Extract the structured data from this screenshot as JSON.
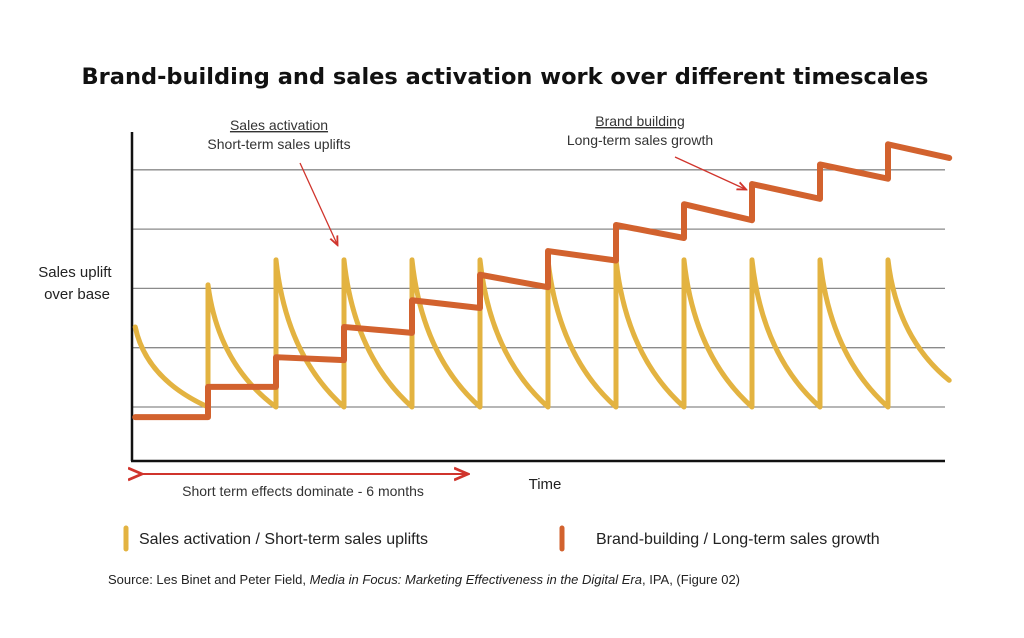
{
  "chart_data": {
    "type": "line",
    "title": "Brand-building and sales activation work over different timescales",
    "xlabel": "Time",
    "ylabel": "Sales uplift over base",
    "grid": true,
    "gridlines": [
      0,
      1,
      2,
      3,
      4
    ],
    "xlim": [
      -0.12,
      11.95
    ],
    "ylim": [
      -0.9,
      4.6
    ],
    "series": [
      {
        "name": "Sales activation / Short-term sales uplifts",
        "color": "#E3B341",
        "points": [
          [
            -0.07,
            1.35
          ],
          [
            1,
            0
          ],
          [
            1,
            2.06
          ],
          [
            2,
            0
          ],
          [
            2,
            2.48
          ],
          [
            3,
            0
          ],
          [
            3,
            2.48
          ],
          [
            4,
            0
          ],
          [
            4,
            2.48
          ],
          [
            5,
            0
          ],
          [
            5,
            2.48
          ],
          [
            6,
            0
          ],
          [
            6,
            2.48
          ],
          [
            7,
            0
          ],
          [
            7,
            2.48
          ],
          [
            8,
            0
          ],
          [
            8,
            2.48
          ],
          [
            9,
            0
          ],
          [
            9,
            2.48
          ],
          [
            10,
            0
          ],
          [
            10,
            2.48
          ],
          [
            11,
            0
          ],
          [
            11,
            2.48
          ],
          [
            11.9,
            0.45
          ]
        ]
      },
      {
        "name": "Brand-building / Long-term sales growth",
        "color": "#D2622E",
        "points": [
          [
            -0.07,
            -0.17
          ],
          [
            1,
            -0.17
          ],
          [
            1,
            0.34
          ],
          [
            2,
            0.34
          ],
          [
            2,
            0.84
          ],
          [
            3,
            0.79
          ],
          [
            3,
            1.35
          ],
          [
            4,
            1.25
          ],
          [
            4,
            1.8
          ],
          [
            5,
            1.67
          ],
          [
            5,
            2.23
          ],
          [
            6,
            2.02
          ],
          [
            6,
            2.63
          ],
          [
            7,
            2.47
          ],
          [
            7,
            3.07
          ],
          [
            8,
            2.85
          ],
          [
            8,
            3.42
          ],
          [
            9,
            3.15
          ],
          [
            9,
            3.76
          ],
          [
            10,
            3.51
          ],
          [
            10,
            4.09
          ],
          [
            11,
            3.85
          ],
          [
            11,
            4.43
          ],
          [
            11.9,
            4.2
          ]
        ]
      }
    ],
    "annotations": {
      "sales_activation_heading": "Sales activation",
      "sales_activation_sub": "Short-term sales uplifts",
      "brand_building_heading": "Brand building",
      "brand_building_sub": "Long-term sales growth",
      "short_term_span": "Short term effects dominate - 6 months",
      "arrow_color": "#D0342C"
    },
    "legend": {
      "placement": "bottom",
      "items": [
        "Sales activation / Short-term sales uplifts",
        "Brand-building / Long-term sales growth"
      ]
    },
    "source": {
      "prefix": "Source: Les Binet and Peter Field, ",
      "publication": "Media in Focus: Marketing Effectiveness in the Digital Era",
      "suffix": ", IPA, (Figure 02)"
    }
  }
}
